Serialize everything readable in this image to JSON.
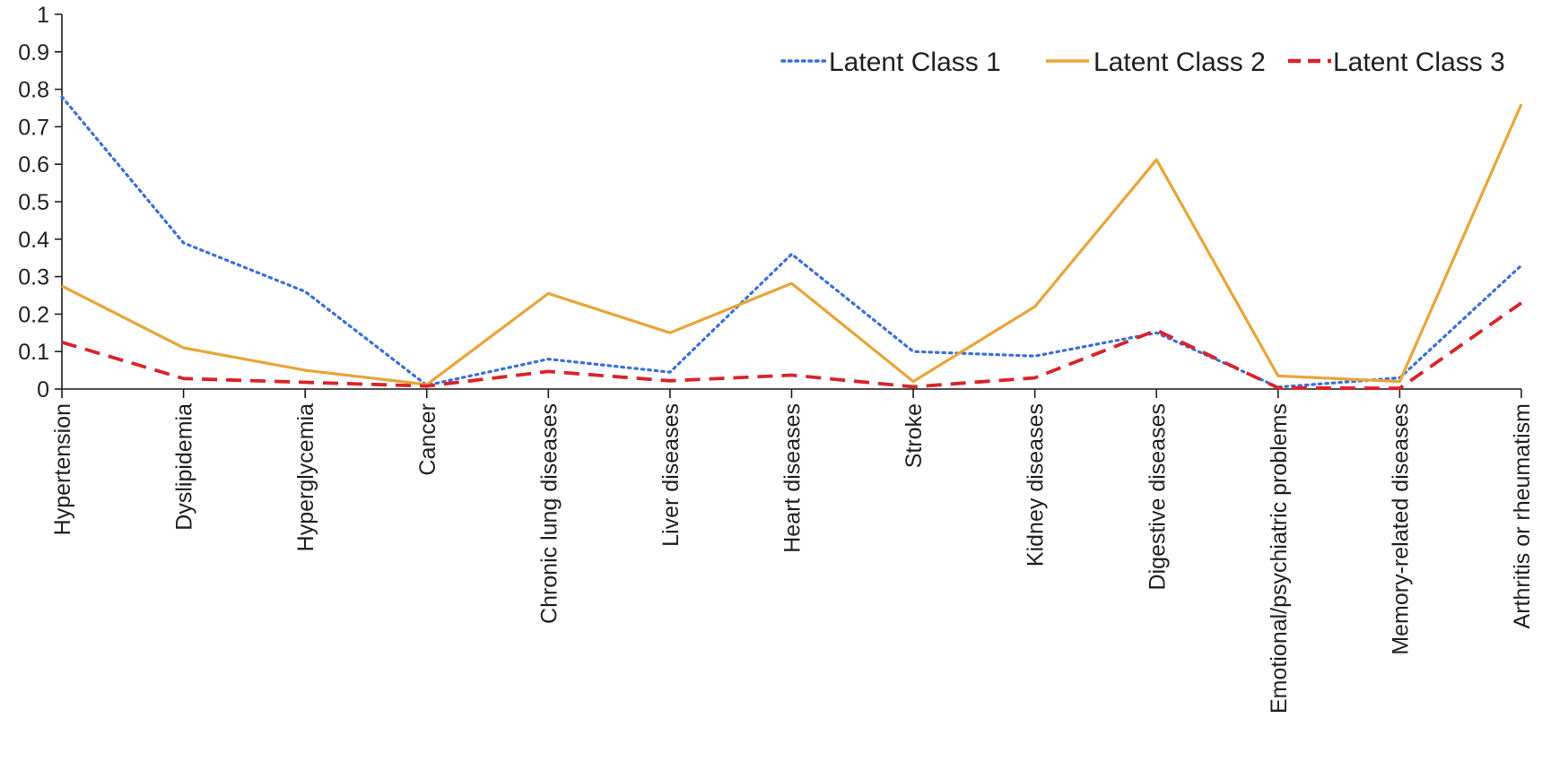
{
  "chart_data": {
    "type": "line",
    "title": "",
    "xlabel": "",
    "ylabel": "",
    "ylim": [
      0,
      1
    ],
    "yticks": [
      "0",
      "0.1",
      "0.2",
      "0.3",
      "0.4",
      "0.5",
      "0.6",
      "0.7",
      "0.8",
      "0.9",
      "1"
    ],
    "grid": false,
    "legend_position": "top-right",
    "categories": [
      "Hypertension",
      "Dyslipidemia",
      "Hyperglycemia",
      "Cancer",
      "Chronic lung diseases",
      "Liver diseases",
      "Heart diseases",
      "Stroke",
      "Kidney diseases",
      "Digestive diseases",
      "Emotional/psychiatric problems",
      "Memory-related diseases",
      "Arthritis or rheumatism"
    ],
    "series": [
      {
        "name": "Latent Class 1",
        "color": "#3a6fd8",
        "dash": "dotted",
        "values": [
          0.78,
          0.39,
          0.26,
          0.01,
          0.08,
          0.045,
          0.36,
          0.1,
          0.088,
          0.15,
          0.005,
          0.03,
          0.33
        ]
      },
      {
        "name": "Latent Class 2",
        "color": "#e8a53a",
        "dash": "solid",
        "values": [
          0.275,
          0.11,
          0.05,
          0.012,
          0.255,
          0.15,
          0.282,
          0.02,
          0.22,
          0.612,
          0.035,
          0.02,
          0.76
        ]
      },
      {
        "name": "Latent Class 3",
        "color": "#d9232a",
        "dash": "dashed",
        "values": [
          0.125,
          0.028,
          0.018,
          0.008,
          0.047,
          0.022,
          0.037,
          0.006,
          0.03,
          0.157,
          0.003,
          0.002,
          0.23
        ]
      }
    ]
  }
}
